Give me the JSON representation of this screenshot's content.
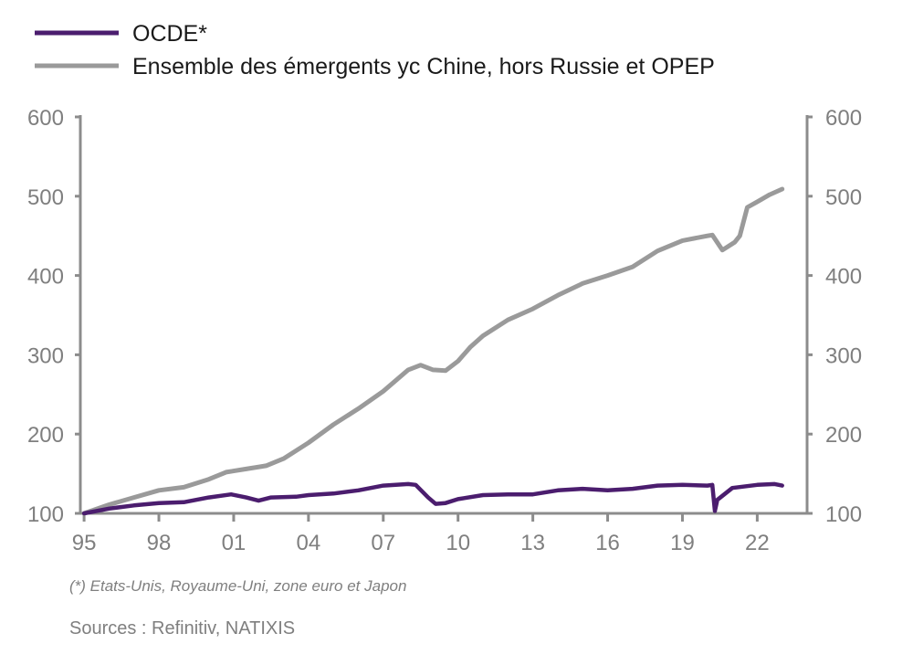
{
  "chart_data": {
    "type": "line",
    "title": "",
    "xlabel": "",
    "ylabel": "",
    "xlim": [
      1994.85,
      2024
    ],
    "ylim": [
      100,
      600
    ],
    "y_ticks": [
      "100",
      "200",
      "300",
      "400",
      "500",
      "600"
    ],
    "y_ticks_right": [
      "100",
      "200",
      "300",
      "400",
      "500",
      "600"
    ],
    "x_ticks": [
      {
        "value": 1995,
        "label": "95"
      },
      {
        "value": 1998,
        "label": "98"
      },
      {
        "value": 2001,
        "label": "01"
      },
      {
        "value": 2004,
        "label": "04"
      },
      {
        "value": 2007,
        "label": "07"
      },
      {
        "value": 2010,
        "label": "10"
      },
      {
        "value": 2013,
        "label": "13"
      },
      {
        "value": 2016,
        "label": "16"
      },
      {
        "value": 2019,
        "label": "19"
      },
      {
        "value": 2022,
        "label": "22"
      }
    ],
    "grid": false,
    "legend_position": "top-left",
    "series": [
      {
        "name": "OCDE*",
        "color": "#4b1d6e",
        "x": [
          1995,
          1996,
          1997,
          1998,
          1999,
          2000,
          2000.9,
          2001.5,
          2002,
          2002.5,
          2003.5,
          2004,
          2005,
          2006,
          2007,
          2008,
          2008.3,
          2008.8,
          2009.1,
          2009.5,
          2010,
          2011,
          2012,
          2013,
          2014,
          2015,
          2016,
          2017,
          2018,
          2019,
          2020,
          2020.2,
          2020.3,
          2020.4,
          2021,
          2022,
          2022.7,
          2023
        ],
        "y": [
          100,
          106,
          110,
          113,
          114,
          120,
          124,
          120,
          116,
          120,
          121,
          123,
          125,
          129,
          135,
          137,
          136,
          120,
          112,
          113,
          118,
          123,
          124,
          124,
          129,
          131,
          129,
          131,
          135,
          136,
          135,
          136,
          103,
          117,
          132,
          136,
          137,
          135
        ]
      },
      {
        "name": "Ensemble des émergents yc Chine, hors Russie et OPEP",
        "color": "#9a9a9a",
        "x": [
          1995,
          1996,
          1997,
          1998,
          1999,
          2000,
          2000.7,
          2001.5,
          2002.3,
          2003,
          2004,
          2005,
          2006,
          2007,
          2008,
          2008.5,
          2009,
          2009.5,
          2010,
          2010.5,
          2011,
          2012,
          2013,
          2014,
          2015,
          2016,
          2017,
          2018,
          2019,
          2020,
          2020.2,
          2020.6,
          2021.1,
          2021.3,
          2021.6,
          2022,
          2022.5,
          2023
        ],
        "y": [
          100,
          111,
          120,
          129,
          133,
          143,
          152,
          156,
          160,
          169,
          189,
          212,
          232,
          254,
          281,
          287,
          281,
          280,
          292,
          310,
          324,
          344,
          358,
          375,
          390,
          400,
          411,
          431,
          444,
          450,
          451,
          432,
          442,
          450,
          486,
          493,
          502,
          509
        ]
      }
    ]
  },
  "footnote": "(*) Etats-Unis, Royaume-Uni, zone euro et Japon",
  "sources": "Sources : Refinitiv, NATIXIS"
}
